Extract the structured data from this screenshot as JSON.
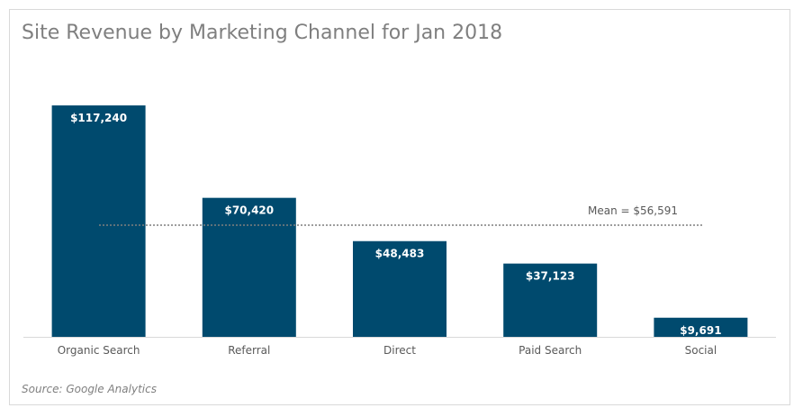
{
  "chart_data": {
    "type": "bar",
    "title": "Site Revenue by Marketing Channel for Jan 2018",
    "source": "Source: Google Analytics",
    "categories": [
      "Organic Search",
      "Referral",
      "Direct",
      "Paid Search",
      "Social"
    ],
    "values": [
      117240,
      70420,
      48483,
      37123,
      9691
    ],
    "data_labels": [
      "$117,240",
      "$70,420",
      "$48,483",
      "$37,123",
      "$9,691"
    ],
    "mean_value": 56591,
    "mean_label": "Mean = $56,591",
    "ylim": [
      0,
      120000
    ],
    "bar_color": "#004a6e",
    "mean_line_color": "#7f7f7f",
    "grid": false
  }
}
